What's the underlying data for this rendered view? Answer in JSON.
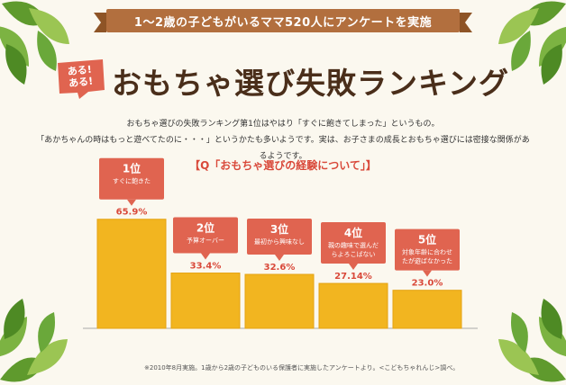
{
  "header": {
    "ribbon_text": "1〜2歳の子どもがいるママ520人にアンケートを実施",
    "badge_line1": "ある!",
    "badge_line2": "ある!",
    "title": "おもちゃ選び失敗ランキング"
  },
  "intro": {
    "line1": "おもちゃ選びの失敗ランキング第1位はやはり「すぐに飽きてしまった」というもの。",
    "line2": "「あかちゃんの時はもっと遊べてたのに・・・」というかたも多いようです。実は、お子さまの成長とおもちゃ選びには密接な関係があるようです。"
  },
  "question": "【Q「おもちゃ選びの経験について」】",
  "chart_data": {
    "type": "bar",
    "title": "おもちゃ選びの経験について",
    "categories": [
      "1位",
      "2位",
      "3位",
      "4位",
      "5位"
    ],
    "descriptions": [
      "すぐに飽きた",
      "予算オーバー",
      "最初から興味なし",
      "親の趣味で選んだらよろこばない",
      "対象年齢に合わせたが遊ばなかった"
    ],
    "value_labels": [
      "65.9%",
      "33.4%",
      "32.6%",
      "27.14%",
      "23.0%"
    ],
    "values": [
      65.9,
      33.4,
      32.6,
      27.14,
      23.0
    ],
    "ylim": [
      0,
      100
    ],
    "colors": {
      "bar": "#f2b520",
      "bar_edge": "#e4a212",
      "callout": "#e06450",
      "label": "#d9493a"
    }
  },
  "footnote": "※2010年8月実施。1歳から2歳の子どものいる保護者に実施したアンケートより。<こどもちゃれんじ>調べ。"
}
